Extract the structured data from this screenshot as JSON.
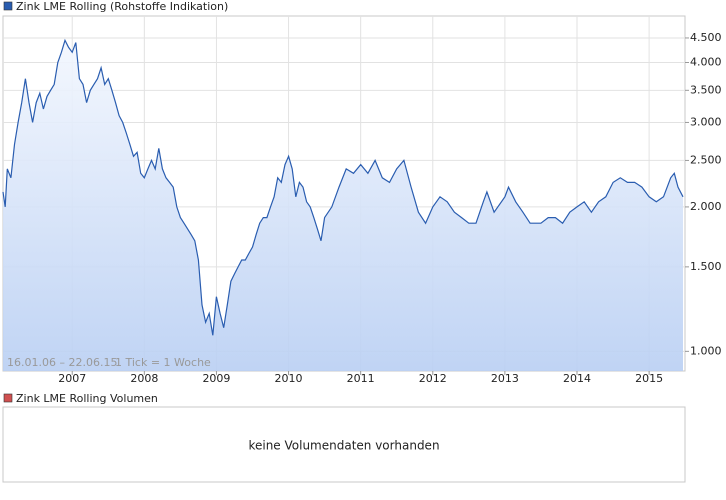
{
  "chart_data": {
    "type": "line",
    "series": [
      {
        "name": "Zink LME Rolling (Rohstoffe Indikation)",
        "color": "#2a5db0",
        "x": [
          2006.04,
          2006.07,
          2006.1,
          2006.15,
          2006.2,
          2006.25,
          2006.3,
          2006.35,
          2006.4,
          2006.45,
          2006.5,
          2006.55,
          2006.6,
          2006.65,
          2006.7,
          2006.75,
          2006.8,
          2006.85,
          2006.9,
          2006.95,
          2007.0,
          2007.05,
          2007.1,
          2007.15,
          2007.2,
          2007.25,
          2007.3,
          2007.35,
          2007.4,
          2007.45,
          2007.5,
          2007.55,
          2007.6,
          2007.65,
          2007.7,
          2007.75,
          2007.8,
          2007.85,
          2007.9,
          2007.95,
          2008.0,
          2008.05,
          2008.1,
          2008.15,
          2008.2,
          2008.25,
          2008.3,
          2008.35,
          2008.4,
          2008.45,
          2008.5,
          2008.55,
          2008.6,
          2008.65,
          2008.7,
          2008.75,
          2008.8,
          2008.85,
          2008.9,
          2008.95,
          2009.0,
          2009.05,
          2009.1,
          2009.15,
          2009.2,
          2009.25,
          2009.3,
          2009.35,
          2009.4,
          2009.45,
          2009.5,
          2009.55,
          2009.6,
          2009.65,
          2009.7,
          2009.75,
          2009.8,
          2009.85,
          2009.9,
          2009.95,
          2010.0,
          2010.05,
          2010.1,
          2010.15,
          2010.2,
          2010.25,
          2010.3,
          2010.35,
          2010.4,
          2010.45,
          2010.5,
          2010.6,
          2010.7,
          2010.8,
          2010.9,
          2011.0,
          2011.1,
          2011.2,
          2011.3,
          2011.4,
          2011.5,
          2011.6,
          2011.7,
          2011.8,
          2011.9,
          2012.0,
          2012.1,
          2012.2,
          2012.3,
          2012.4,
          2012.5,
          2012.6,
          2012.7,
          2012.75,
          2012.85,
          2013.0,
          2013.05,
          2013.15,
          2013.25,
          2013.35,
          2013.5,
          2013.6,
          2013.7,
          2013.8,
          2013.9,
          2014.0,
          2014.1,
          2014.2,
          2014.3,
          2014.4,
          2014.5,
          2014.6,
          2014.7,
          2014.8,
          2014.9,
          2015.0,
          2015.1,
          2015.2,
          2015.3,
          2015.35,
          2015.4,
          2015.47
        ],
        "values": [
          2150,
          2000,
          2400,
          2300,
          2700,
          3000,
          3300,
          3700,
          3300,
          3000,
          3300,
          3450,
          3200,
          3400,
          3500,
          3600,
          4000,
          4200,
          4450,
          4300,
          4200,
          4400,
          3700,
          3600,
          3300,
          3500,
          3600,
          3700,
          3900,
          3600,
          3700,
          3500,
          3300,
          3100,
          3000,
          2850,
          2700,
          2550,
          2600,
          2350,
          2300,
          2400,
          2500,
          2400,
          2650,
          2400,
          2300,
          2250,
          2200,
          2000,
          1900,
          1850,
          1800,
          1750,
          1700,
          1550,
          1250,
          1150,
          1200,
          1080,
          1300,
          1200,
          1120,
          1250,
          1400,
          1450,
          1500,
          1550,
          1550,
          1600,
          1650,
          1750,
          1850,
          1900,
          1900,
          2000,
          2100,
          2300,
          2250,
          2450,
          2550,
          2400,
          2100,
          2250,
          2200,
          2050,
          2000,
          1900,
          1800,
          1700,
          1900,
          2000,
          2200,
          2400,
          2350,
          2450,
          2350,
          2500,
          2300,
          2250,
          2400,
          2500,
          2200,
          1950,
          1850,
          2000,
          2100,
          2050,
          1950,
          1900,
          1850,
          1850,
          2050,
          2150,
          1950,
          2100,
          2200,
          2050,
          1950,
          1850,
          1850,
          1900,
          1900,
          1850,
          1950,
          2000,
          2050,
          1950,
          2050,
          2100,
          2250,
          2300,
          2250,
          2250,
          2200,
          2100,
          2050,
          2100,
          2300,
          2350,
          2200,
          2100
        ]
      }
    ],
    "xlim": [
      2006.04,
      2015.47
    ],
    "xticks": [
      2007,
      2008,
      2009,
      2010,
      2011,
      2012,
      2013,
      2014,
      2015
    ],
    "ylim": [
      910,
      5000
    ],
    "log_scale": true,
    "grid": true,
    "yticks": [
      {
        "value": 1000,
        "label": "1.000"
      },
      {
        "value": 1500,
        "label": "1.500"
      },
      {
        "value": 2000,
        "label": "2.000"
      },
      {
        "value": 2500,
        "label": "2.500"
      },
      {
        "value": 3000,
        "label": "3.000"
      },
      {
        "value": 3500,
        "label": "3.500"
      },
      {
        "value": 4000,
        "label": "4.000"
      },
      {
        "value": 4500,
        "label": "4.500"
      }
    ],
    "range_note": "16.01.06 – 22.06.15",
    "tick_note": "1 Tick = 1 Woche"
  },
  "volume_panel": {
    "name": "Zink LME Rolling Volumen",
    "color": "#d05050",
    "message": "keine Volumendaten vorhanden"
  }
}
